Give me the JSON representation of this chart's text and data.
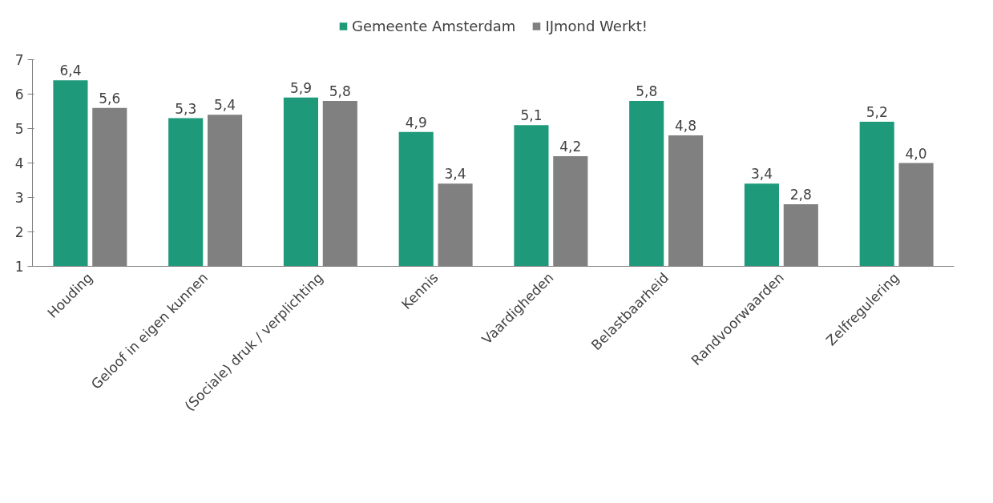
{
  "chart_data": {
    "type": "bar",
    "categories": [
      "Houding",
      "Geloof in eigen kunnen",
      "(Sociale) druk / verplichting",
      "Kennis",
      "Vaardigheden",
      "Belastbaarheid",
      "Randvoorwaarden",
      "Zelfregulering"
    ],
    "series": [
      {
        "name": "Gemeente Amsterdam",
        "color": "#1e9a7b",
        "values": [
          6.4,
          5.3,
          5.9,
          4.9,
          5.1,
          5.8,
          3.4,
          5.2
        ],
        "value_labels": [
          "6,4",
          "5,3",
          "5,9",
          "4,9",
          "5,1",
          "5,8",
          "3,4",
          "5,2"
        ]
      },
      {
        "name": "IJmond Werkt!",
        "color": "#808080",
        "values": [
          5.6,
          5.4,
          5.8,
          3.4,
          4.2,
          4.8,
          2.8,
          4.0
        ],
        "value_labels": [
          "5,6",
          "5,4",
          "5,8",
          "3,4",
          "4,2",
          "4,8",
          "2,8",
          "4,0"
        ]
      }
    ],
    "ylim": [
      1,
      7
    ],
    "yticks": [
      1,
      2,
      3,
      4,
      5,
      6,
      7
    ],
    "grid": false,
    "legend": "top"
  }
}
